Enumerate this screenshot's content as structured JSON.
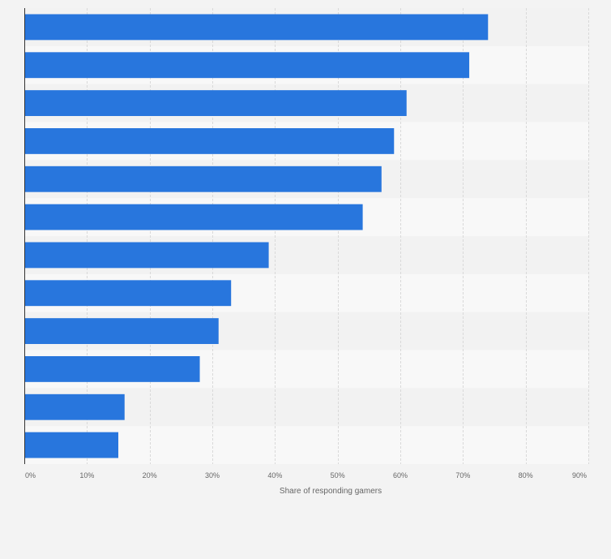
{
  "chart_data": {
    "type": "bar",
    "orientation": "horizontal",
    "categories": [
      "",
      "",
      "",
      "",
      "",
      "",
      "",
      "",
      "",
      "",
      "",
      ""
    ],
    "values": [
      74,
      71,
      61,
      59,
      57,
      54,
      39,
      33,
      31,
      28,
      16,
      15
    ],
    "xlabel": "Share of responding gamers",
    "ylabel": "",
    "xlim": [
      0,
      90
    ],
    "xticks": [
      0,
      10,
      20,
      30,
      40,
      50,
      60,
      70,
      80,
      90
    ],
    "xtick_labels": [
      "0%",
      "10%",
      "20%",
      "30%",
      "40%",
      "50%",
      "60%",
      "70%",
      "80%",
      "90%"
    ],
    "grid": true,
    "legend": "none",
    "colors": {
      "bar": "#2876dd",
      "band_light": "#f8f8f8",
      "band_dark": "#f2f2f2",
      "grid": "#d9d9d9",
      "axis": "#333333",
      "text": "#666666"
    }
  }
}
